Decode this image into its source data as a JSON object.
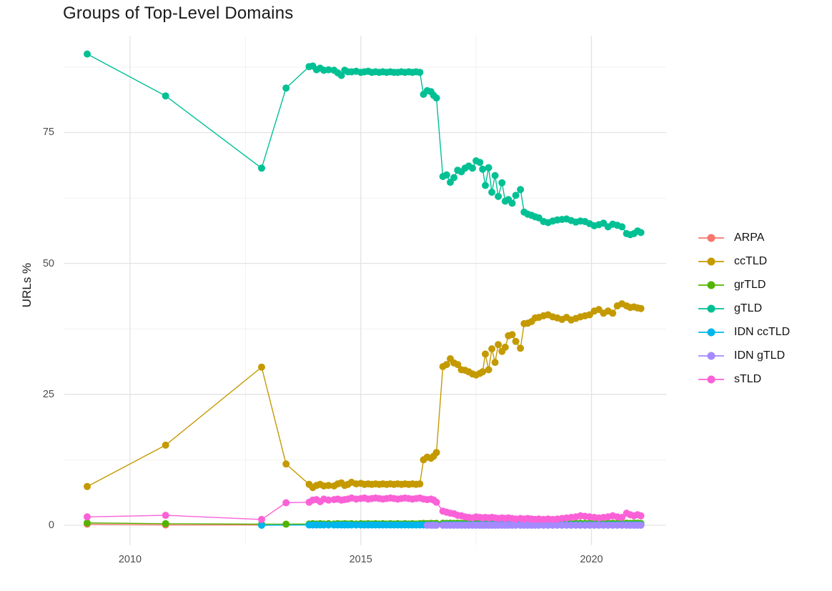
{
  "chart_data": {
    "type": "line",
    "title": "Groups of Top-Level Domains",
    "xlabel": "",
    "ylabel": "URLs %",
    "x_ticks": [
      2010,
      2015,
      2020
    ],
    "x_tick_labels": [
      "2010",
      "2015",
      "2020"
    ],
    "x_minor": [
      2012.5,
      2017.5
    ],
    "y_ticks": [
      0,
      25,
      50,
      75
    ],
    "y_tick_labels": [
      "0",
      "25",
      "50",
      "75"
    ],
    "y_minor": [
      12.5,
      37.5,
      62.5,
      87.5
    ],
    "xlim": [
      2008.6,
      2021.6
    ],
    "ylim": [
      -4,
      93.5
    ],
    "grid": true,
    "legend_position": "right",
    "dense_x": [
      2013.88,
      2013.96,
      2014.04,
      2014.12,
      2014.2,
      2014.3,
      2014.42,
      2014.5,
      2014.58,
      2014.65,
      2014.72,
      2014.8,
      2014.9,
      2015.0,
      2015.08,
      2015.16,
      2015.24,
      2015.32,
      2015.4,
      2015.48,
      2015.56,
      2015.64,
      2015.72,
      2015.8,
      2015.88,
      2015.96,
      2016.04,
      2016.12,
      2016.2,
      2016.28,
      2016.36,
      2016.44,
      2016.52,
      2016.58,
      2016.64,
      2016.78,
      2016.86,
      2016.94,
      2017.02,
      2017.1,
      2017.18,
      2017.26,
      2017.34,
      2017.42,
      2017.5,
      2017.58,
      2017.64,
      2017.7,
      2017.77,
      2017.84,
      2017.91,
      2017.98,
      2018.06,
      2018.13,
      2018.2,
      2018.28,
      2018.36,
      2018.46,
      2018.54,
      2018.62,
      2018.7,
      2018.78,
      2018.86,
      2018.96,
      2019.06,
      2019.16,
      2019.26,
      2019.36,
      2019.46,
      2019.56,
      2019.66,
      2019.76,
      2019.86,
      2019.96,
      2020.06,
      2020.16,
      2020.26,
      2020.36,
      2020.46,
      2020.56,
      2020.66,
      2020.76,
      2020.84,
      2020.92,
      2021.0,
      2021.07
    ],
    "series": [
      {
        "name": "ARPA",
        "color": "#F8766D",
        "points": [
          [
            2009.07,
            0.2
          ],
          [
            2010.77,
            0.05
          ],
          [
            2012.85,
            0.05
          ]
        ]
      },
      {
        "name": "ccTLD",
        "color": "#C49A00",
        "points": [
          [
            2009.07,
            7.4
          ],
          [
            2010.77,
            15.3
          ],
          [
            2012.85,
            30.2
          ],
          [
            2013.38,
            11.7
          ]
        ],
        "dense": {
          "from": 0,
          "values": [
            7.8,
            7.2,
            7.6,
            7.8,
            7.5,
            7.6,
            7.5,
            7.9,
            8.1,
            7.6,
            7.8,
            8.2,
            7.9,
            8.0,
            7.8,
            7.9,
            7.8,
            7.9,
            7.8,
            7.9,
            7.8,
            7.9,
            7.8,
            7.9,
            7.8,
            7.9,
            7.8,
            7.9,
            7.8,
            7.9,
            12.5,
            13.0,
            12.8,
            13.2,
            13.9,
            30.3,
            30.7,
            31.8,
            31.0,
            30.7,
            29.7,
            29.6,
            29.3,
            28.9,
            28.7,
            29.0,
            29.3,
            32.7,
            29.7,
            33.7,
            31.1,
            34.5,
            33.2,
            34.0,
            36.2,
            36.4,
            35.1,
            33.8,
            38.5,
            38.6,
            38.9,
            39.6,
            39.7,
            40.0,
            40.2,
            39.8,
            39.6,
            39.3,
            39.7,
            39.2,
            39.5,
            39.8,
            40.0,
            40.2,
            40.9,
            41.2,
            40.5,
            40.9,
            40.5,
            41.9,
            42.3,
            41.9,
            41.6,
            41.7,
            41.5,
            41.4
          ]
        }
      },
      {
        "name": "grTLD",
        "color": "#53B400",
        "points": [
          [
            2009.07,
            0.45
          ],
          [
            2010.77,
            0.3
          ],
          [
            2012.85,
            0.2
          ],
          [
            2013.38,
            0.2
          ]
        ],
        "dense": {
          "from": 0,
          "values": [
            0.25,
            0.3,
            0.25,
            0.3,
            0.25,
            0.3,
            0.25,
            0.3,
            0.25,
            0.3,
            0.25,
            0.3,
            0.25,
            0.3,
            0.25,
            0.3,
            0.25,
            0.3,
            0.25,
            0.3,
            0.25,
            0.3,
            0.25,
            0.3,
            0.25,
            0.3,
            0.25,
            0.3,
            0.25,
            0.3,
            0.35,
            0.3,
            0.35,
            0.3,
            0.35,
            0.4,
            0.35,
            0.4,
            0.35,
            0.4,
            0.35,
            0.4,
            0.35,
            0.4,
            0.35,
            0.4,
            0.35,
            0.4,
            0.35,
            0.4,
            0.35,
            0.4,
            0.35,
            0.4,
            0.35,
            0.4,
            0.35,
            0.4,
            0.4,
            0.35,
            0.4,
            0.35,
            0.4,
            0.35,
            0.4,
            0.35,
            0.4,
            0.35,
            0.4,
            0.35,
            0.4,
            0.4,
            0.35,
            0.4,
            0.35,
            0.4,
            0.35,
            0.4,
            0.4,
            0.35,
            0.4,
            0.4,
            0.35,
            0.4,
            0.4,
            0.35
          ]
        }
      },
      {
        "name": "gTLD",
        "color": "#00C094",
        "points": [
          [
            2009.07,
            90.0
          ],
          [
            2010.77,
            82.0
          ],
          [
            2012.85,
            68.2
          ],
          [
            2013.38,
            83.5
          ]
        ],
        "dense": {
          "from": 0,
          "values": [
            87.6,
            87.7,
            87.0,
            87.3,
            86.9,
            87.0,
            86.9,
            86.4,
            85.9,
            86.9,
            86.6,
            86.6,
            86.7,
            86.5,
            86.6,
            86.7,
            86.5,
            86.6,
            86.5,
            86.6,
            86.5,
            86.6,
            86.5,
            86.5,
            86.6,
            86.5,
            86.6,
            86.5,
            86.6,
            86.5,
            82.3,
            83.0,
            82.8,
            82.1,
            81.6,
            66.6,
            66.9,
            65.5,
            66.4,
            67.8,
            67.5,
            68.2,
            68.6,
            68.2,
            69.6,
            69.3,
            68.0,
            64.9,
            68.3,
            63.6,
            66.8,
            62.8,
            65.4,
            61.9,
            62.2,
            61.5,
            63.0,
            64.1,
            59.8,
            59.4,
            59.2,
            58.9,
            58.7,
            58.0,
            57.8,
            58.1,
            58.3,
            58.4,
            58.5,
            58.2,
            57.9,
            58.1,
            58.0,
            57.6,
            57.2,
            57.4,
            57.7,
            57.0,
            57.5,
            57.3,
            57.0,
            55.7,
            55.5,
            55.7,
            56.2,
            55.9
          ]
        }
      },
      {
        "name": "IDN ccTLD",
        "color": "#00B6EB",
        "points": [
          [
            2012.85,
            0.0
          ]
        ],
        "dense": {
          "from": 0,
          "values": [
            0.05,
            0.05,
            0.05,
            0.05,
            0.05,
            0.05,
            0.05,
            0.05,
            0.05,
            0.05,
            0.05,
            0.05,
            0.05,
            0.05,
            0.05,
            0.05,
            0.05,
            0.05,
            0.05,
            0.05,
            0.05,
            0.05,
            0.05,
            0.05,
            0.05,
            0.05,
            0.05,
            0.05,
            0.05,
            0.05,
            0.05,
            0.05,
            0.05,
            0.05,
            0.05,
            0.1,
            0.1,
            0.1,
            0.1,
            0.1,
            0.1,
            0.1,
            0.1,
            0.1,
            0.1,
            0.1,
            0.1,
            0.1,
            0.1,
            0.1,
            0.1,
            0.1,
            0.1,
            0.1,
            0.1,
            0.1,
            0.1,
            0.1,
            0.1,
            0.1,
            0.1,
            0.1,
            0.1,
            0.1,
            0.1,
            0.1,
            0.1,
            0.1,
            0.1,
            0.1,
            0.1,
            0.1,
            0.1,
            0.1,
            0.1,
            0.1,
            0.1,
            0.1,
            0.1,
            0.1,
            0.1,
            0.1,
            0.1,
            0.1,
            0.1,
            0.1
          ]
        }
      },
      {
        "name": "IDN gTLD",
        "color": "#A58AFF",
        "points": [],
        "dense": {
          "from": 31,
          "values": [
            0.0,
            0.0,
            0.0,
            0.0,
            0.0,
            0.0,
            0.0,
            0.0,
            0.0,
            0.0,
            0.0,
            0.0,
            0.0,
            0.0,
            0.0,
            0.0,
            0.0,
            0.0,
            0.0,
            0.0,
            0.0,
            0.0,
            0.0,
            0.0,
            0.0,
            0.0,
            0.0,
            0.0,
            0.0,
            0.0,
            0.0,
            0.0,
            0.0,
            0.0,
            0.0,
            0.0,
            0.0,
            0.0,
            0.0,
            0.0,
            0.0,
            0.0,
            0.0,
            0.0,
            0.0,
            0.0,
            0.0,
            0.0,
            0.0,
            0.0,
            0.0,
            0.0,
            0.0,
            0.0,
            0.0
          ]
        }
      },
      {
        "name": "sTLD",
        "color": "#FB61D7",
        "points": [
          [
            2009.07,
            1.6
          ],
          [
            2010.77,
            1.9
          ],
          [
            2012.85,
            1.1
          ],
          [
            2013.38,
            4.3
          ]
        ],
        "dense": {
          "from": 0,
          "values": [
            4.4,
            4.8,
            4.9,
            4.5,
            5.0,
            4.8,
            4.9,
            5.0,
            4.8,
            4.9,
            5.0,
            5.2,
            5.0,
            5.1,
            5.2,
            5.0,
            5.1,
            5.2,
            5.1,
            5.0,
            5.1,
            5.2,
            5.1,
            5.0,
            5.1,
            5.2,
            5.1,
            5.0,
            5.1,
            5.2,
            5.0,
            4.9,
            5.0,
            4.8,
            4.4,
            2.7,
            2.5,
            2.3,
            2.2,
            1.9,
            1.8,
            1.6,
            1.5,
            1.4,
            1.6,
            1.5,
            1.4,
            1.5,
            1.4,
            1.5,
            1.4,
            1.3,
            1.4,
            1.3,
            1.4,
            1.3,
            1.2,
            1.3,
            1.2,
            1.3,
            1.2,
            1.1,
            1.2,
            1.1,
            1.2,
            1.1,
            1.2,
            1.3,
            1.4,
            1.5,
            1.6,
            1.8,
            1.7,
            1.6,
            1.5,
            1.4,
            1.5,
            1.6,
            1.8,
            1.6,
            1.5,
            2.3,
            2.0,
            1.8,
            2.0,
            1.8
          ]
        }
      }
    ]
  },
  "legend": {
    "items": [
      {
        "label": "ARPA",
        "color": "#F8766D"
      },
      {
        "label": "ccTLD",
        "color": "#C49A00"
      },
      {
        "label": "grTLD",
        "color": "#53B400"
      },
      {
        "label": "gTLD",
        "color": "#00C094"
      },
      {
        "label": "IDN ccTLD",
        "color": "#00B6EB"
      },
      {
        "label": "IDN gTLD",
        "color": "#A58AFF"
      },
      {
        "label": "sTLD",
        "color": "#FB61D7"
      }
    ]
  },
  "colors": {
    "grid_major": "#E3E3E3",
    "grid_minor": "#EFEFEF",
    "axis_text": "#4d4d4d",
    "title_text": "#1a1a1a"
  }
}
